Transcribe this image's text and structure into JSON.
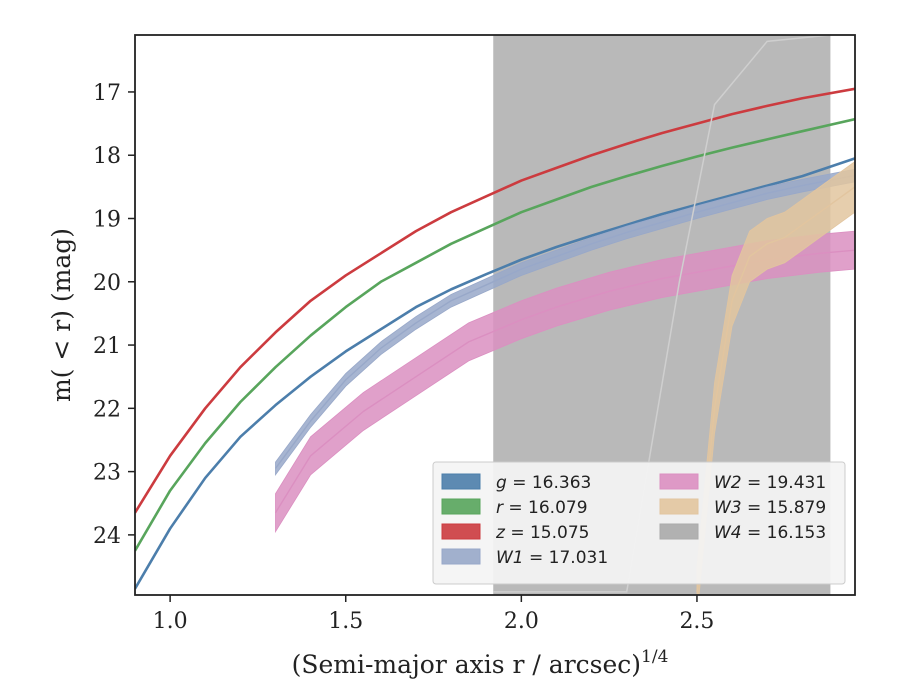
{
  "chart_data": {
    "type": "line",
    "xlabel": "(Semi-major axis r / arcsec)",
    "xlabel_exponent": "1/4",
    "ylabel": "m( < r) (mag)",
    "xlim": [
      0.9,
      2.95
    ],
    "ylim": [
      24.95,
      16.1
    ],
    "y_inverted": true,
    "grid": false,
    "legend_position": "lower-right",
    "x_ticks": [
      "1.0",
      "1.5",
      "2.0",
      "2.5"
    ],
    "y_ticks": [
      "17",
      "18",
      "19",
      "20",
      "21",
      "22",
      "23",
      "24"
    ],
    "legend": [
      {
        "name": "g",
        "value": "16.363",
        "color": "#4c7eab"
      },
      {
        "name": "r",
        "value": "16.079",
        "color": "#58a55c"
      },
      {
        "name": "z",
        "value": "15.075",
        "color": "#cc3b3f"
      },
      {
        "name": "W1",
        "value": "17.031",
        "color": "#98a8c9"
      },
      {
        "name": "W2",
        "value": "19.431",
        "color": "#db8fc1"
      },
      {
        "name": "W3",
        "value": "15.879",
        "color": "#e2c59f"
      },
      {
        "name": "W4",
        "value": "16.153",
        "color": "#aaaaaa"
      }
    ],
    "series": [
      {
        "label": "z",
        "color": "#cc3b3f",
        "x": [
          0.9,
          1.0,
          1.1,
          1.2,
          1.3,
          1.4,
          1.5,
          1.6,
          1.7,
          1.8,
          1.9,
          2.0,
          2.1,
          2.2,
          2.3,
          2.4,
          2.5,
          2.6,
          2.7,
          2.8,
          2.95
        ],
        "y": [
          23.65,
          22.75,
          22.0,
          21.35,
          20.8,
          20.3,
          19.9,
          19.55,
          19.2,
          18.9,
          18.65,
          18.4,
          18.2,
          18.0,
          17.82,
          17.65,
          17.5,
          17.35,
          17.22,
          17.1,
          16.95
        ]
      },
      {
        "label": "r",
        "color": "#58a55c",
        "x": [
          0.9,
          1.0,
          1.1,
          1.2,
          1.3,
          1.4,
          1.5,
          1.6,
          1.7,
          1.8,
          1.9,
          2.0,
          2.1,
          2.2,
          2.3,
          2.4,
          2.5,
          2.6,
          2.7,
          2.8,
          2.95
        ],
        "y": [
          24.25,
          23.3,
          22.55,
          21.9,
          21.35,
          20.85,
          20.4,
          20.0,
          19.7,
          19.4,
          19.15,
          18.9,
          18.7,
          18.5,
          18.33,
          18.17,
          18.02,
          17.88,
          17.75,
          17.62,
          17.43
        ]
      },
      {
        "label": "g",
        "color": "#4c7eab",
        "x": [
          0.9,
          1.0,
          1.1,
          1.2,
          1.3,
          1.4,
          1.5,
          1.6,
          1.7,
          1.8,
          1.9,
          2.0,
          2.1,
          2.2,
          2.3,
          2.4,
          2.5,
          2.6,
          2.7,
          2.8,
          2.95
        ],
        "y": [
          24.85,
          23.9,
          23.1,
          22.45,
          21.95,
          21.5,
          21.1,
          20.75,
          20.4,
          20.12,
          19.88,
          19.65,
          19.45,
          19.27,
          19.1,
          18.93,
          18.78,
          18.63,
          18.48,
          18.33,
          18.05
        ]
      },
      {
        "label": "W1",
        "color": "#98a8c9",
        "x": [
          1.3,
          1.4,
          1.5,
          1.6,
          1.7,
          1.8,
          1.9,
          2.0,
          2.1,
          2.2,
          2.3,
          2.4,
          2.5,
          2.6,
          2.7,
          2.8,
          2.95
        ],
        "y": [
          22.95,
          22.2,
          21.55,
          21.05,
          20.65,
          20.3,
          20.05,
          19.8,
          19.6,
          19.4,
          19.22,
          19.06,
          18.9,
          18.75,
          18.6,
          18.48,
          18.32
        ]
      },
      {
        "label": "W2",
        "color": "#db8fc1",
        "x": [
          1.3,
          1.4,
          1.55,
          1.7,
          1.85,
          2.0,
          2.1,
          2.25,
          2.4,
          2.55,
          2.7,
          2.85,
          2.95
        ],
        "y": [
          23.65,
          22.75,
          22.05,
          21.5,
          20.95,
          20.6,
          20.4,
          20.15,
          19.95,
          19.8,
          19.65,
          19.55,
          19.5
        ]
      },
      {
        "label": "W3",
        "color": "#e2c59f",
        "x": [
          2.5,
          2.55,
          2.6,
          2.65,
          2.7,
          2.75,
          2.8,
          2.85,
          2.9,
          2.95
        ],
        "y": [
          24.9,
          22.0,
          20.3,
          19.6,
          19.4,
          19.3,
          19.1,
          18.9,
          18.7,
          18.5
        ]
      },
      {
        "label": "W4",
        "color": "#aaaaaa",
        "x": [
          1.92,
          1.95,
          2.1,
          2.3,
          2.45,
          2.55,
          2.7,
          2.88
        ],
        "y": [
          24.9,
          24.9,
          24.9,
          24.9,
          20.0,
          17.2,
          16.2,
          16.1
        ]
      }
    ],
    "shaded_region": {
      "x_start": 1.92,
      "x_end": 2.88,
      "color": "#b5b5b5"
    }
  }
}
